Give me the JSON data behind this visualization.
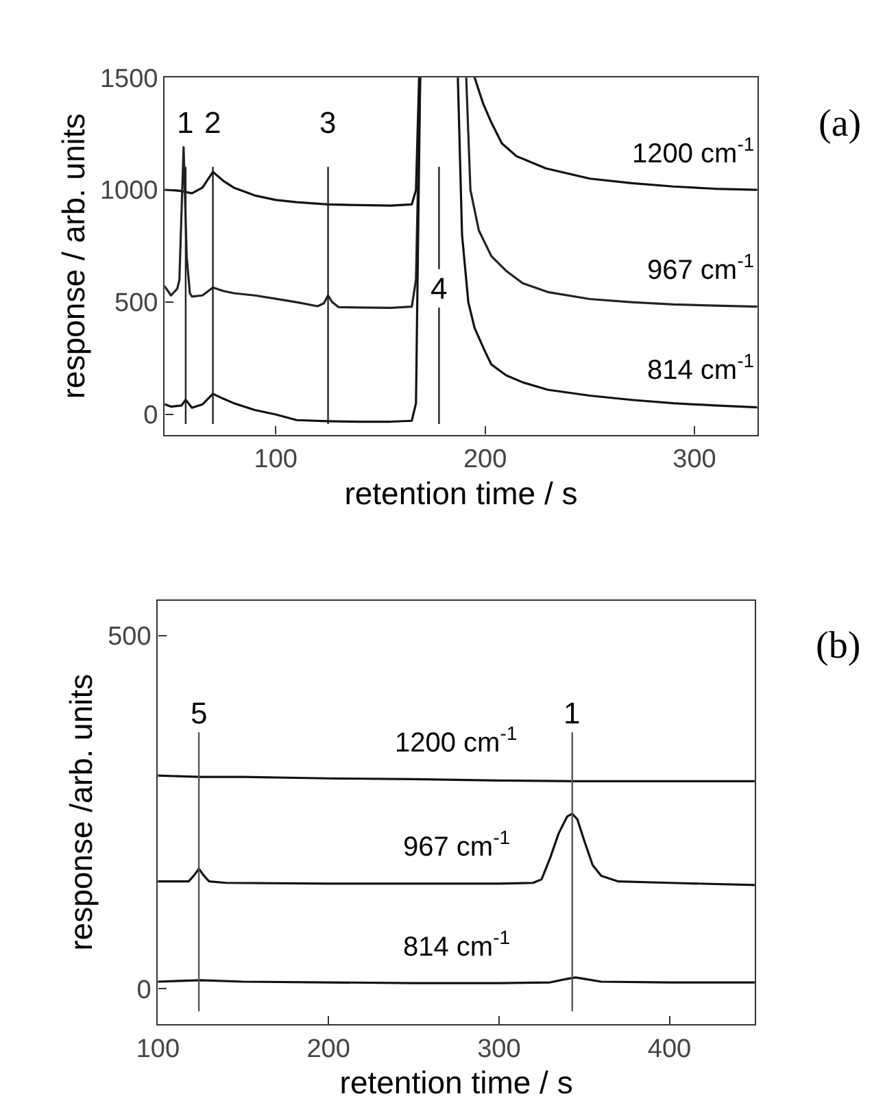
{
  "chart_data": [
    {
      "type": "line",
      "xlabel": "retention time / s",
      "ylabel": "response / arb. units",
      "xlim": [
        47,
        330
      ],
      "ylim": [
        -90,
        1500
      ],
      "xticks": [
        100,
        200,
        300
      ],
      "yticks": [
        0,
        500,
        1000,
        1500
      ],
      "legend": false,
      "marker": "none",
      "line_style": "solid",
      "annotations": [
        "(a)",
        {
          "text": "1",
          "x": 57,
          "y": 1300
        },
        {
          "text": "2",
          "x": 70,
          "y": 1300
        },
        {
          "text": "3",
          "x": 125,
          "y": 1300
        },
        {
          "text": "4",
          "x": 178,
          "y": 560
        }
      ],
      "ref_lines": [
        {
          "axis": "x",
          "value": 57,
          "color": "#222222"
        },
        {
          "axis": "x",
          "value": 70,
          "color": "#222222"
        },
        {
          "axis": "x",
          "value": 125,
          "color": "#222222"
        },
        {
          "axis": "x",
          "value": 178,
          "color": "#222222"
        }
      ],
      "series": [
        {
          "name": "1200 cm$^{-1}$",
          "color": "#111111",
          "x": [
            47,
            52,
            55,
            57,
            60,
            65,
            70,
            75,
            80,
            90,
            100,
            110,
            125,
            140,
            155,
            165,
            167,
            168.5,
            null,
            195,
            199,
            203,
            208,
            215,
            229,
            250,
            270,
            290,
            310,
            330
          ],
          "values": [
            1000,
            998,
            995,
            990,
            985,
            1010,
            1080,
            1040,
            1010,
            975,
            955,
            945,
            935,
            932,
            930,
            935,
            1000,
            1500,
            null,
            1500,
            1386,
            1300,
            1207,
            1150,
            1096,
            1050,
            1030,
            1015,
            1005,
            1000
          ]
        },
        {
          "name": "967 cm$^{-1}$",
          "color": "#222222",
          "x": [
            47,
            50,
            53,
            54,
            56,
            57.5,
            59,
            60,
            65,
            70,
            75,
            80,
            90,
            100,
            110,
            120,
            123,
            125,
            127,
            130,
            140,
            155,
            165,
            167,
            169,
            null,
            191,
            193,
            197,
            203,
            210,
            218,
            230,
            250,
            270,
            290,
            310,
            330
          ],
          "values": [
            570,
            530,
            560,
            600,
            1190,
            700,
            540,
            525,
            530,
            565,
            550,
            540,
            530,
            515,
            500,
            482,
            495,
            530,
            500,
            478,
            476,
            475,
            480,
            600,
            1500,
            null,
            1500,
            1000,
            820,
            705,
            640,
            584,
            545,
            514,
            500,
            490,
            485,
            480
          ]
        },
        {
          "name": "814 cm$^{-1}$",
          "color": "#111111",
          "x": [
            47,
            50,
            55,
            57,
            60,
            65,
            70,
            75,
            80,
            90,
            100,
            110,
            125,
            140,
            155,
            165,
            167,
            169,
            null,
            187,
            189,
            192,
            195,
            200,
            203,
            210,
            218,
            230,
            250,
            270,
            290,
            310,
            330
          ],
          "values": [
            45,
            35,
            40,
            66,
            30,
            45,
            92,
            70,
            50,
            20,
            0,
            -25,
            -30,
            -32,
            -32,
            -28,
            50,
            1500,
            null,
            1500,
            800,
            500,
            385,
            280,
            223,
            175,
            143,
            110,
            84,
            65,
            50,
            40,
            32
          ]
        }
      ]
    },
    {
      "type": "line",
      "xlabel": "retention time / s",
      "ylabel": "response /arb. units",
      "xlim": [
        100,
        450
      ],
      "ylim": [
        -50,
        550
      ],
      "xticks": [
        100,
        200,
        300,
        400
      ],
      "yticks": [
        0,
        500
      ],
      "legend": false,
      "marker": "none",
      "line_style": "solid",
      "annotations": [
        "(b)",
        {
          "text": "5",
          "x": 124,
          "y": 390
        },
        {
          "text": "1",
          "x": 343,
          "y": 390
        }
      ],
      "ref_lines": [
        {
          "axis": "x",
          "value": 124,
          "color": "#555555"
        },
        {
          "axis": "x",
          "value": 343,
          "color": "#555555"
        }
      ],
      "series": [
        {
          "name": "1200 cm$^{-1}$",
          "color": "#111111",
          "x": [
            100,
            125,
            150,
            200,
            250,
            300,
            345,
            400,
            450
          ],
          "values": [
            302,
            300,
            300,
            298,
            297,
            295,
            294,
            294,
            294
          ]
        },
        {
          "name": "967 cm$^{-1}$",
          "color": "#111111",
          "x": [
            100,
            118,
            121,
            124,
            127,
            130,
            140,
            200,
            250,
            300,
            320,
            325,
            330,
            335,
            340,
            343,
            346,
            350,
            355,
            360,
            370,
            400,
            450
          ],
          "values": [
            152,
            152,
            160,
            170,
            160,
            152,
            150,
            149,
            149,
            149,
            150,
            155,
            185,
            220,
            244,
            248,
            240,
            210,
            175,
            160,
            152,
            150,
            147
          ]
        },
        {
          "name": "814 cm$^{-1}$",
          "color": "#111111",
          "x": [
            100,
            125,
            150,
            200,
            250,
            300,
            330,
            340,
            345,
            350,
            360,
            400,
            450
          ],
          "values": [
            10,
            12,
            10,
            9,
            8,
            8,
            9,
            14,
            16,
            14,
            10,
            9,
            9
          ]
        }
      ]
    }
  ]
}
